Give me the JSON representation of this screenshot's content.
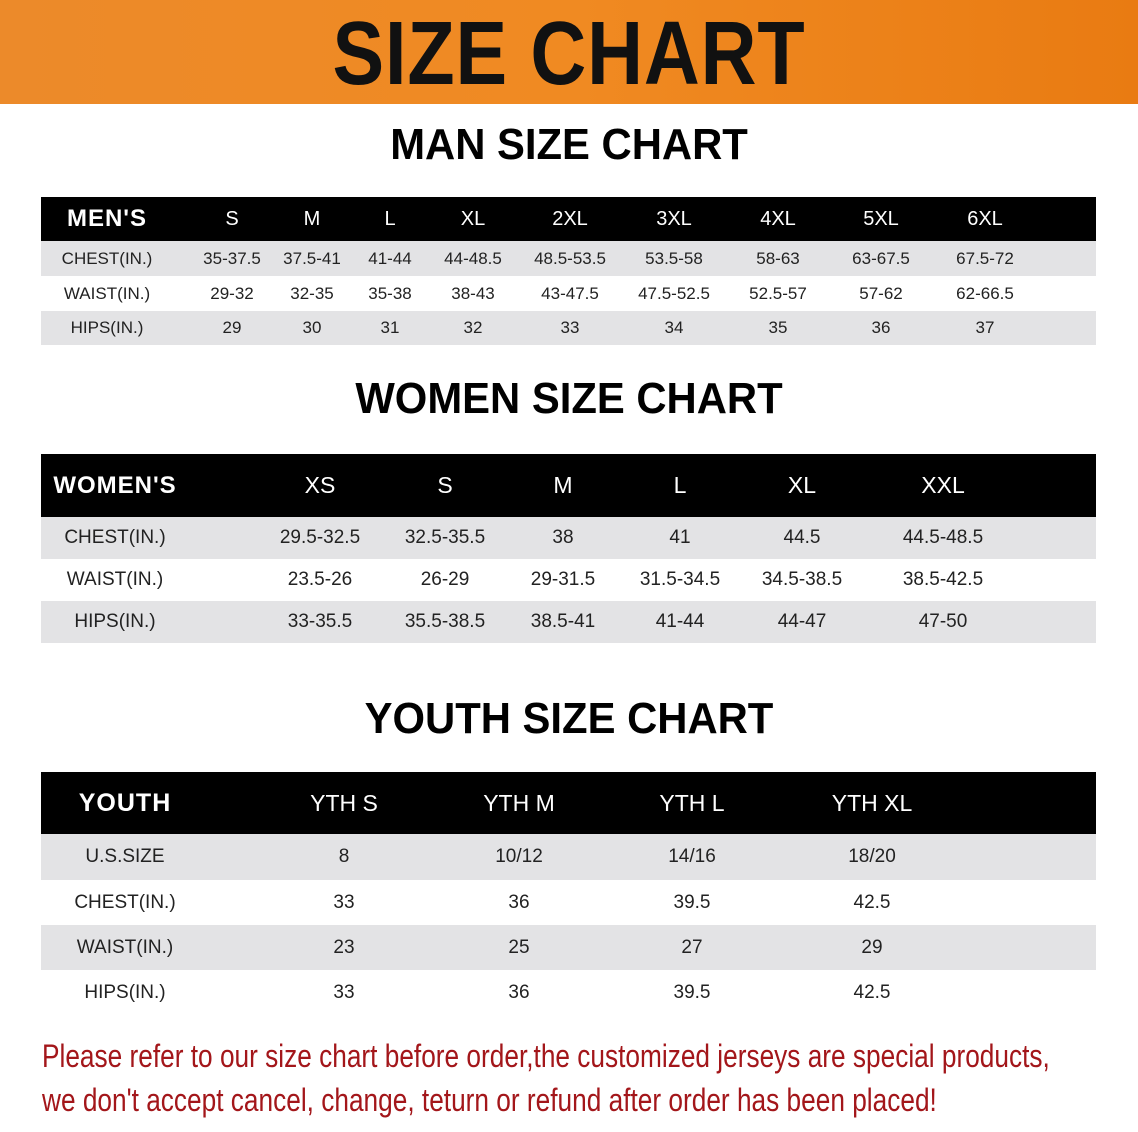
{
  "banner": {
    "title": "SIZE CHART",
    "color": "#ef8420"
  },
  "men": {
    "title": "MAN SIZE CHART",
    "header": [
      "MEN'S",
      "S",
      "M",
      "L",
      "XL",
      "2XL",
      "3XL",
      "4XL",
      "5XL",
      "6XL"
    ],
    "rows": [
      [
        "CHEST(IN.)",
        "35-37.5",
        "37.5-41",
        "41-44",
        "44-48.5",
        "48.5-53.5",
        "53.5-58",
        "58-63",
        "63-67.5",
        "67.5-72"
      ],
      [
        "WAIST(IN.)",
        "29-32",
        "32-35",
        "35-38",
        "38-43",
        "43-47.5",
        "47.5-52.5",
        "52.5-57",
        "57-62",
        "62-66.5"
      ],
      [
        "HIPS(IN.)",
        "29",
        "30",
        "31",
        "32",
        "33",
        "34",
        "35",
        "36",
        "37"
      ]
    ]
  },
  "women": {
    "title": "WOMEN SIZE CHART",
    "header": [
      "WOMEN'S",
      "XS",
      "S",
      "M",
      "L",
      "XL",
      "XXL"
    ],
    "rows": [
      [
        "CHEST(IN.)",
        "29.5-32.5",
        "32.5-35.5",
        "38",
        "41",
        "44.5",
        "44.5-48.5"
      ],
      [
        "WAIST(IN.)",
        "23.5-26",
        "26-29",
        "29-31.5",
        "31.5-34.5",
        "34.5-38.5",
        "38.5-42.5"
      ],
      [
        "HIPS(IN.)",
        "33-35.5",
        "35.5-38.5",
        "38.5-41",
        "41-44",
        "44-47",
        "47-50"
      ]
    ]
  },
  "youth": {
    "title": "YOUTH SIZE CHART",
    "header": [
      "YOUTH",
      "YTH S",
      "YTH M",
      "YTH L",
      "YTH XL"
    ],
    "rows": [
      [
        "U.S.SIZE",
        "8",
        "10/12",
        "14/16",
        "18/20"
      ],
      [
        "CHEST(IN.)",
        "33",
        "36",
        "39.5",
        "42.5"
      ],
      [
        "WAIST(IN.)",
        "23",
        "25",
        "27",
        "29"
      ],
      [
        "HIPS(IN.)",
        "33",
        "36",
        "39.5",
        "42.5"
      ]
    ]
  },
  "notice": {
    "line1": "Please refer to our size chart before order,the customized jerseys are special products,",
    "line2": "we don't accept cancel, change, teturn or refund after order has been placed!",
    "color": "#a3161a"
  }
}
